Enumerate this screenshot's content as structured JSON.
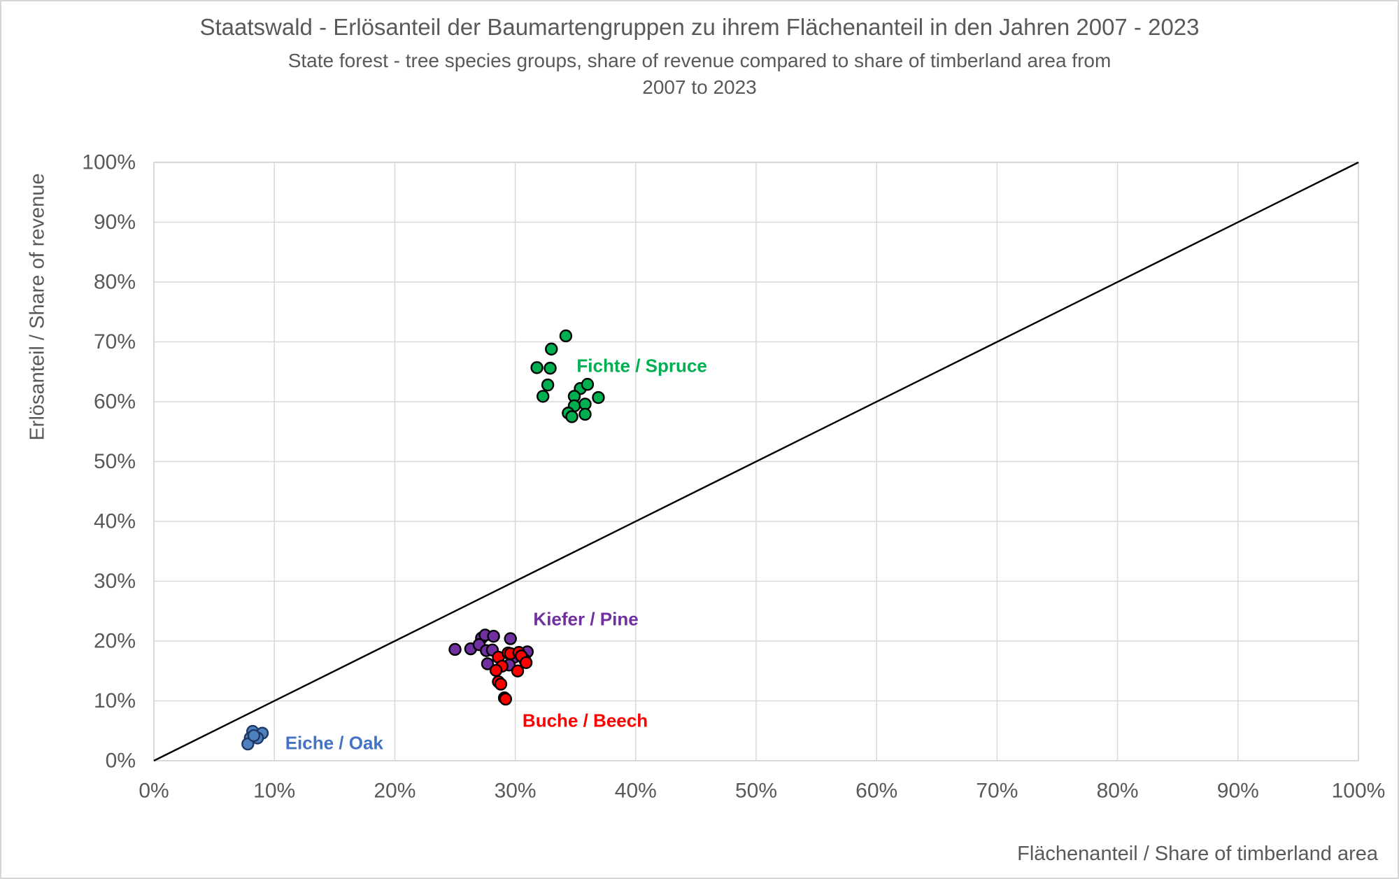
{
  "chart_data": {
    "type": "scatter",
    "title": "Staatswald - Erlösanteil der Baumartengruppen zu ihrem Flächenanteil in den Jahren 2007 - 2023",
    "subtitle_line1": "State forest - tree species groups, share of revenue compared to share of timberland area from",
    "subtitle_line2": "2007 to 2023",
    "xlabel": "Flächenanteil / Share of timberland area",
    "ylabel": "Erlösanteil / Share of revenue",
    "xlim": [
      0,
      100
    ],
    "ylim": [
      0,
      100
    ],
    "grid": true,
    "tick_values": [
      0,
      10,
      20,
      30,
      40,
      50,
      60,
      70,
      80,
      90,
      100
    ],
    "x_tick_labels": [
      "0%",
      "10%",
      "20%",
      "30%",
      "40%",
      "50%",
      "60%",
      "70%",
      "80%",
      "90%",
      "100%"
    ],
    "y_tick_labels": [
      "0%",
      "10%",
      "20%",
      "30%",
      "40%",
      "50%",
      "60%",
      "70%",
      "80%",
      "90%",
      "100%"
    ],
    "grid_color": "#d9d9d9",
    "text_color": "#595959",
    "reference_line": {
      "from": [
        0,
        0
      ],
      "to": [
        100,
        100
      ],
      "color": "#000000"
    },
    "series": [
      {
        "name": "Fichte / Spruce",
        "color": "#00b050",
        "stroke": "#000000",
        "label_color": "#00b050",
        "label_anchor": [
          35.1,
          66.0
        ],
        "points": [
          [
            34.2,
            71.0
          ],
          [
            33.0,
            68.8
          ],
          [
            31.8,
            65.7
          ],
          [
            32.9,
            65.6
          ],
          [
            32.7,
            62.8
          ],
          [
            32.3,
            60.9
          ],
          [
            35.4,
            62.2
          ],
          [
            36.0,
            62.9
          ],
          [
            34.9,
            60.9
          ],
          [
            36.9,
            60.7
          ],
          [
            34.9,
            59.3
          ],
          [
            35.8,
            59.6
          ],
          [
            34.4,
            58.1
          ],
          [
            34.7,
            57.5
          ],
          [
            35.8,
            57.9
          ]
        ]
      },
      {
        "name": "Kiefer / Pine",
        "color": "#7030a0",
        "stroke": "#000000",
        "label_color": "#7030a0",
        "label_anchor": [
          31.5,
          23.7
        ],
        "points": [
          [
            25.0,
            18.6
          ],
          [
            26.3,
            18.7
          ],
          [
            27.2,
            20.5
          ],
          [
            27.0,
            19.4
          ],
          [
            27.5,
            21.0
          ],
          [
            28.2,
            20.8
          ],
          [
            27.6,
            18.4
          ],
          [
            28.1,
            18.5
          ],
          [
            29.6,
            20.4
          ],
          [
            29.9,
            17.3
          ],
          [
            31.0,
            18.2
          ],
          [
            30.8,
            16.8
          ],
          [
            27.7,
            16.2
          ],
          [
            29.5,
            16.0
          ]
        ]
      },
      {
        "name": "Buche / Beech",
        "color": "#ff0000",
        "stroke": "#000000",
        "label_color": "#ff0000",
        "label_anchor": [
          30.6,
          6.7
        ],
        "points": [
          [
            28.6,
            17.3
          ],
          [
            29.4,
            18.0
          ],
          [
            29.6,
            17.9
          ],
          [
            30.3,
            18.1
          ],
          [
            30.5,
            17.5
          ],
          [
            30.9,
            16.4
          ],
          [
            28.9,
            15.8
          ],
          [
            28.4,
            15.1
          ],
          [
            30.2,
            15.0
          ],
          [
            28.6,
            13.2
          ],
          [
            28.8,
            12.8
          ],
          [
            29.1,
            10.5
          ],
          [
            29.2,
            10.3
          ]
        ]
      },
      {
        "name": "Eiche / Oak",
        "color": "#4e81bd",
        "stroke": "#1f3864",
        "label_color": "#4472c4",
        "label_anchor": [
          10.9,
          3.0
        ],
        "points": [
          [
            8.2,
            4.9
          ],
          [
            9.0,
            4.6
          ],
          [
            8.0,
            3.8
          ],
          [
            8.6,
            3.8
          ],
          [
            7.8,
            2.8
          ],
          [
            8.3,
            4.2
          ]
        ]
      }
    ]
  }
}
